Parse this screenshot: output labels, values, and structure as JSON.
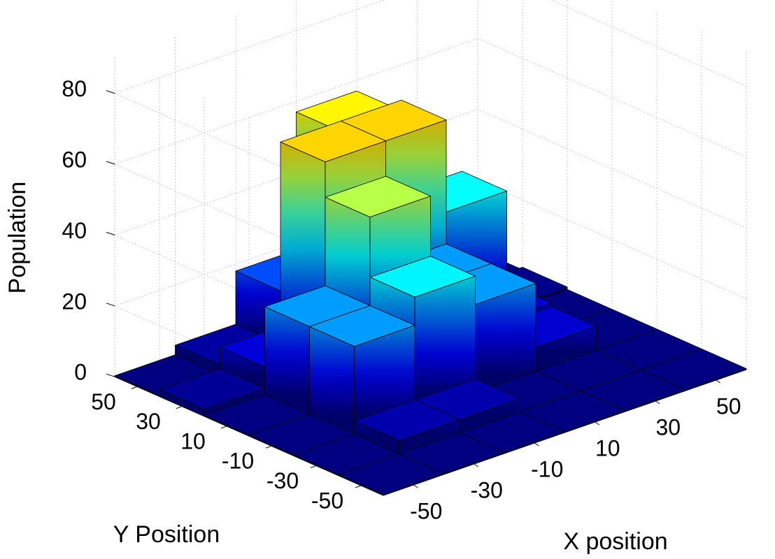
{
  "chart_data": {
    "type": "bar3d",
    "xlabel": "X position",
    "ylabel": "Y Position",
    "zlabel": "Population",
    "x_ticks": [
      -50,
      -30,
      -10,
      10,
      30,
      50
    ],
    "y_ticks": [
      -50,
      -30,
      -10,
      10,
      30,
      50
    ],
    "z_ticks": [
      0,
      20,
      40,
      60,
      80
    ],
    "zlim": [
      0,
      90
    ],
    "grid": true,
    "colormap": "jet",
    "values": [
      {
        "x": -50,
        "y": -50,
        "z": 0
      },
      {
        "x": -30,
        "y": -50,
        "z": 0
      },
      {
        "x": -10,
        "y": -50,
        "z": 0
      },
      {
        "x": 10,
        "y": -50,
        "z": 0
      },
      {
        "x": 30,
        "y": -50,
        "z": 0
      },
      {
        "x": 50,
        "y": -50,
        "z": 0
      },
      {
        "x": -50,
        "y": -30,
        "z": 0
      },
      {
        "x": -30,
        "y": -30,
        "z": 4
      },
      {
        "x": -10,
        "y": -30,
        "z": 4
      },
      {
        "x": 10,
        "y": -30,
        "z": 0
      },
      {
        "x": 30,
        "y": -30,
        "z": 0
      },
      {
        "x": 50,
        "y": -30,
        "z": 0
      },
      {
        "x": -50,
        "y": -10,
        "z": 0
      },
      {
        "x": -30,
        "y": -10,
        "z": 25
      },
      {
        "x": -10,
        "y": -10,
        "z": 33
      },
      {
        "x": 10,
        "y": -10,
        "z": 25
      },
      {
        "x": 30,
        "y": -10,
        "z": 7
      },
      {
        "x": 50,
        "y": -10,
        "z": 0
      },
      {
        "x": -50,
        "y": 10,
        "z": 0
      },
      {
        "x": -30,
        "y": 10,
        "z": 25
      },
      {
        "x": -10,
        "y": 10,
        "z": 50
      },
      {
        "x": 10,
        "y": 10,
        "z": 25
      },
      {
        "x": 30,
        "y": 10,
        "z": 8
      },
      {
        "x": 50,
        "y": 10,
        "z": 0
      },
      {
        "x": -50,
        "y": 30,
        "z": 2
      },
      {
        "x": -30,
        "y": 30,
        "z": 8
      },
      {
        "x": -10,
        "y": 30,
        "z": 60
      },
      {
        "x": 10,
        "y": 30,
        "z": 60
      },
      {
        "x": 30,
        "y": 30,
        "z": 34
      },
      {
        "x": 50,
        "y": 30,
        "z": 1
      },
      {
        "x": -50,
        "y": 50,
        "z": 0
      },
      {
        "x": -30,
        "y": 50,
        "z": 3
      },
      {
        "x": -10,
        "y": 50,
        "z": 18
      },
      {
        "x": 10,
        "y": 50,
        "z": 57
      },
      {
        "x": 30,
        "y": 50,
        "z": 12
      },
      {
        "x": 50,
        "y": 50,
        "z": 0
      }
    ]
  }
}
